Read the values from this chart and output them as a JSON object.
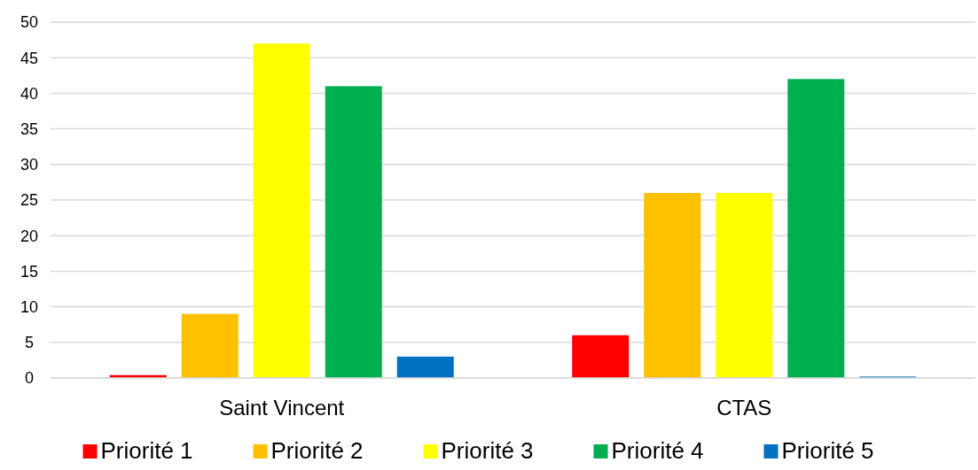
{
  "chart_data": {
    "type": "bar",
    "categories": [
      "Saint Vincent",
      "CTAS"
    ],
    "series": [
      {
        "name": "Priorité 1",
        "color": "#ff0000",
        "values": [
          0.4,
          6
        ]
      },
      {
        "name": "Priorité 2",
        "color": "#ffc000",
        "values": [
          9,
          26
        ]
      },
      {
        "name": "Priorité 3",
        "color": "#ffff00",
        "values": [
          47,
          26
        ]
      },
      {
        "name": "Priorité 4",
        "color": "#00b050",
        "values": [
          41,
          42
        ]
      },
      {
        "name": "Priorité 5",
        "color": "#0070c0",
        "values": [
          3,
          0.2
        ]
      }
    ],
    "ylim": [
      0,
      50
    ],
    "yticks": [
      0,
      5,
      10,
      15,
      20,
      25,
      30,
      35,
      40,
      45,
      50
    ],
    "grid": "y",
    "legend": "bottom"
  }
}
